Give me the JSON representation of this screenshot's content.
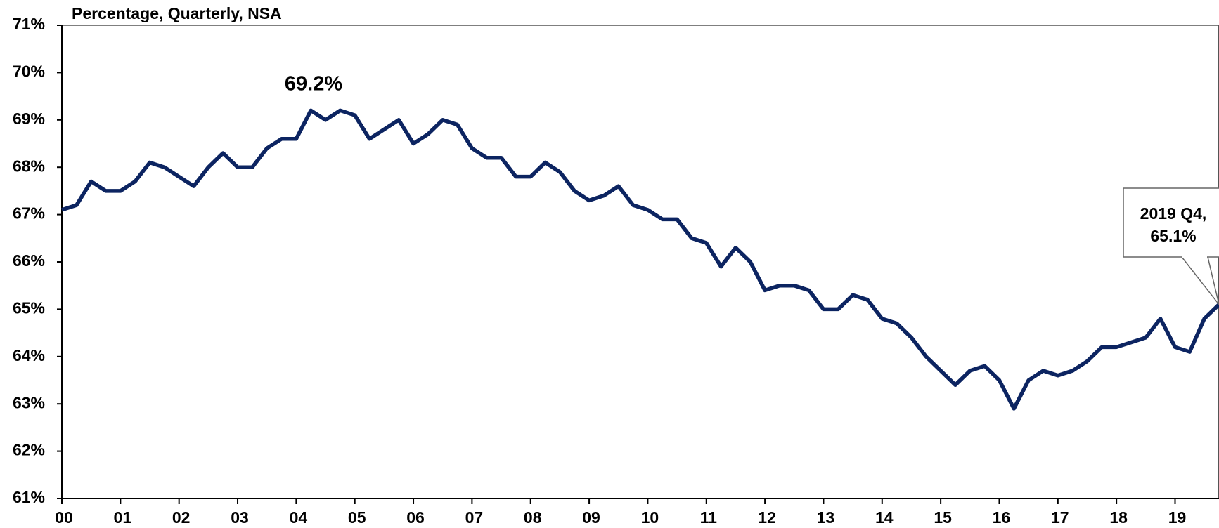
{
  "chart_data": {
    "type": "line",
    "title": "Percentage, Quarterly, NSA",
    "categories": [
      "00",
      null,
      null,
      null,
      "01",
      null,
      null,
      null,
      "02",
      null,
      null,
      null,
      "03",
      null,
      null,
      null,
      "04",
      null,
      null,
      null,
      "05",
      null,
      null,
      null,
      "06",
      null,
      null,
      null,
      "07",
      null,
      null,
      null,
      "08",
      null,
      null,
      null,
      "09",
      null,
      null,
      null,
      "10",
      null,
      null,
      null,
      "11",
      null,
      null,
      null,
      "12",
      null,
      null,
      null,
      "13",
      null,
      null,
      null,
      "14",
      null,
      null,
      null,
      "15",
      null,
      null,
      null,
      "16",
      null,
      null,
      null,
      "17",
      null,
      null,
      null,
      "18",
      null,
      null,
      null,
      "19",
      null,
      null,
      null
    ],
    "values": [
      67.1,
      67.2,
      67.7,
      67.5,
      67.5,
      67.7,
      68.1,
      68.0,
      67.8,
      67.6,
      68.0,
      68.3,
      68.0,
      68.0,
      68.4,
      68.6,
      68.6,
      69.2,
      69.0,
      69.2,
      69.1,
      68.6,
      68.8,
      69.0,
      68.5,
      68.7,
      69.0,
      68.9,
      68.4,
      68.2,
      68.2,
      67.8,
      67.8,
      68.1,
      67.9,
      67.5,
      67.3,
      67.4,
      67.6,
      67.2,
      67.1,
      66.9,
      66.9,
      66.5,
      66.4,
      65.9,
      66.3,
      66.0,
      65.4,
      65.5,
      65.5,
      65.4,
      65.0,
      65.0,
      65.3,
      65.2,
      64.8,
      64.7,
      64.4,
      64.0,
      63.7,
      63.4,
      63.7,
      63.8,
      63.5,
      62.9,
      63.5,
      63.7,
      63.6,
      63.7,
      63.9,
      64.2,
      64.2,
      64.3,
      64.4,
      64.8,
      64.2,
      64.1,
      64.8,
      65.1
    ],
    "color": "#0c2461",
    "ylim": [
      61,
      71
    ],
    "yticks": [
      {
        "value": 61,
        "label": "61%"
      },
      {
        "value": 62,
        "label": "62%"
      },
      {
        "value": 63,
        "label": "63%"
      },
      {
        "value": 64,
        "label": "64%"
      },
      {
        "value": 65,
        "label": "65%"
      },
      {
        "value": 66,
        "label": "66%"
      },
      {
        "value": 67,
        "label": "67%"
      },
      {
        "value": 68,
        "label": "68%"
      },
      {
        "value": 69,
        "label": "69%"
      },
      {
        "value": 70,
        "label": "70%"
      },
      {
        "value": 71,
        "label": "71%"
      }
    ],
    "grid": false,
    "annotations": [
      {
        "text": "69.2%"
      },
      {
        "text": [
          "2019 Q4,",
          "65.1%"
        ]
      }
    ]
  }
}
